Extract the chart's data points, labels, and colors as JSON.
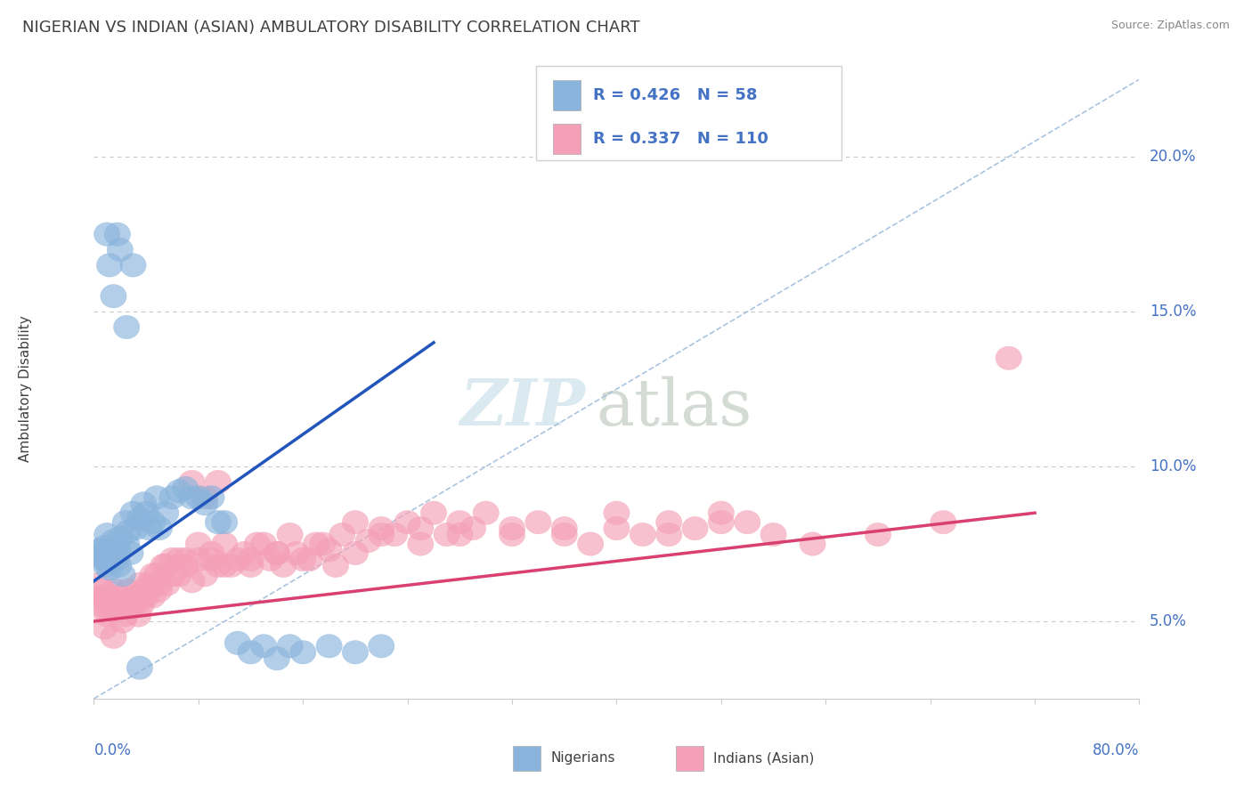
{
  "title": "NIGERIAN VS INDIAN (ASIAN) AMBULATORY DISABILITY CORRELATION CHART",
  "source": "Source: ZipAtlas.com",
  "ylabel": "Ambulatory Disability",
  "ytick_labels": [
    "5.0%",
    "10.0%",
    "15.0%",
    "20.0%"
  ],
  "ytick_values": [
    0.05,
    0.1,
    0.15,
    0.2
  ],
  "xlim": [
    0.0,
    0.8
  ],
  "ylim": [
    0.025,
    0.225
  ],
  "nigerian_color": "#8ab4dc",
  "indian_color": "#f4a0b8",
  "nigerian_R": 0.426,
  "nigerian_N": 58,
  "indian_R": 0.337,
  "indian_N": 110,
  "title_fontsize": 13,
  "label_fontsize": 11,
  "tick_fontsize": 12,
  "nigerian_scatter_x": [
    0.004,
    0.005,
    0.006,
    0.007,
    0.008,
    0.009,
    0.01,
    0.011,
    0.012,
    0.013,
    0.014,
    0.015,
    0.016,
    0.017,
    0.018,
    0.019,
    0.02,
    0.022,
    0.024,
    0.025,
    0.026,
    0.028,
    0.03,
    0.032,
    0.035,
    0.038,
    0.04,
    0.042,
    0.045,
    0.048,
    0.05,
    0.055,
    0.06,
    0.065,
    0.07,
    0.075,
    0.08,
    0.085,
    0.09,
    0.095,
    0.1,
    0.11,
    0.12,
    0.13,
    0.14,
    0.15,
    0.16,
    0.18,
    0.2,
    0.22,
    0.01,
    0.012,
    0.015,
    0.018,
    0.02,
    0.025,
    0.03,
    0.035
  ],
  "nigerian_scatter_y": [
    0.073,
    0.072,
    0.071,
    0.07,
    0.074,
    0.068,
    0.078,
    0.069,
    0.067,
    0.071,
    0.073,
    0.076,
    0.072,
    0.07,
    0.073,
    0.068,
    0.077,
    0.065,
    0.082,
    0.075,
    0.079,
    0.072,
    0.085,
    0.08,
    0.083,
    0.088,
    0.085,
    0.08,
    0.082,
    0.09,
    0.08,
    0.085,
    0.09,
    0.092,
    0.093,
    0.09,
    0.09,
    0.088,
    0.09,
    0.082,
    0.082,
    0.043,
    0.04,
    0.042,
    0.038,
    0.042,
    0.04,
    0.042,
    0.04,
    0.042,
    0.175,
    0.165,
    0.155,
    0.175,
    0.17,
    0.145,
    0.165,
    0.035
  ],
  "indian_scatter_x": [
    0.004,
    0.005,
    0.006,
    0.007,
    0.008,
    0.009,
    0.01,
    0.012,
    0.014,
    0.016,
    0.018,
    0.02,
    0.022,
    0.024,
    0.026,
    0.028,
    0.03,
    0.032,
    0.034,
    0.036,
    0.038,
    0.04,
    0.042,
    0.045,
    0.048,
    0.05,
    0.053,
    0.056,
    0.06,
    0.065,
    0.07,
    0.075,
    0.08,
    0.085,
    0.09,
    0.095,
    0.1,
    0.11,
    0.12,
    0.13,
    0.14,
    0.15,
    0.16,
    0.17,
    0.18,
    0.19,
    0.2,
    0.21,
    0.22,
    0.23,
    0.24,
    0.25,
    0.26,
    0.27,
    0.28,
    0.29,
    0.3,
    0.32,
    0.34,
    0.36,
    0.38,
    0.4,
    0.42,
    0.44,
    0.46,
    0.48,
    0.5,
    0.52,
    0.55,
    0.6,
    0.65,
    0.7,
    0.008,
    0.015,
    0.022,
    0.03,
    0.038,
    0.045,
    0.055,
    0.065,
    0.075,
    0.085,
    0.095,
    0.105,
    0.115,
    0.125,
    0.135,
    0.145,
    0.155,
    0.165,
    0.175,
    0.185,
    0.2,
    0.22,
    0.25,
    0.28,
    0.32,
    0.36,
    0.4,
    0.44,
    0.48,
    0.035,
    0.04,
    0.05,
    0.06,
    0.07,
    0.08,
    0.09,
    0.1,
    0.12,
    0.14
  ],
  "indian_scatter_y": [
    0.062,
    0.058,
    0.055,
    0.06,
    0.058,
    0.055,
    0.052,
    0.058,
    0.055,
    0.06,
    0.055,
    0.058,
    0.055,
    0.052,
    0.06,
    0.057,
    0.055,
    0.058,
    0.052,
    0.055,
    0.058,
    0.06,
    0.062,
    0.058,
    0.065,
    0.062,
    0.068,
    0.062,
    0.07,
    0.065,
    0.068,
    0.063,
    0.07,
    0.065,
    0.072,
    0.068,
    0.075,
    0.07,
    0.068,
    0.075,
    0.072,
    0.078,
    0.07,
    0.075,
    0.073,
    0.078,
    0.082,
    0.076,
    0.08,
    0.078,
    0.082,
    0.08,
    0.085,
    0.078,
    0.082,
    0.08,
    0.085,
    0.078,
    0.082,
    0.08,
    0.075,
    0.085,
    0.078,
    0.082,
    0.08,
    0.085,
    0.082,
    0.078,
    0.075,
    0.078,
    0.082,
    0.135,
    0.048,
    0.045,
    0.05,
    0.055,
    0.06,
    0.065,
    0.068,
    0.07,
    0.095,
    0.09,
    0.095,
    0.068,
    0.072,
    0.075,
    0.07,
    0.068,
    0.072,
    0.07,
    0.075,
    0.068,
    0.072,
    0.078,
    0.075,
    0.078,
    0.08,
    0.078,
    0.08,
    0.078,
    0.082,
    0.062,
    0.058,
    0.06,
    0.065,
    0.07,
    0.075,
    0.07,
    0.068,
    0.07,
    0.072
  ],
  "nigerian_line_x": [
    0.0,
    0.26
  ],
  "nigerian_line_y": [
    0.063,
    0.14
  ],
  "indian_line_x": [
    0.0,
    0.72
  ],
  "indian_line_y": [
    0.05,
    0.085
  ],
  "ref_line_x": [
    0.0,
    0.8
  ],
  "ref_line_y": [
    0.025,
    0.225
  ],
  "background_color": "#ffffff",
  "grid_color": "#c8c8c8",
  "text_color_blue": "#4472c4",
  "text_color_dark": "#404040",
  "source_color": "#888888"
}
